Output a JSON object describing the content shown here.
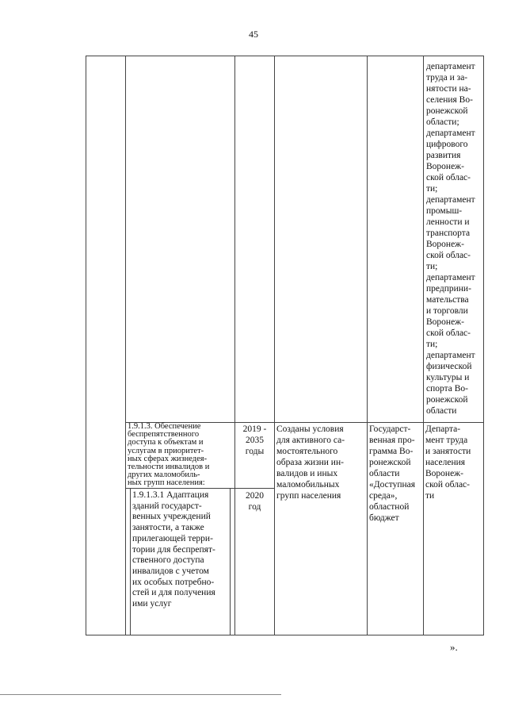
{
  "page_number": "45",
  "top_row": {
    "responsible": "департамент\nтруда и за-\nнятости на-\nселения Во-\nронежской\nобласти;\nдепартамент\nцифрового\nразвития\nВоронеж-\nской облас-\nти;\nдепартамент\nпромыш-\nленности и\nтранспорта\nВоронеж-\nской облас-\nти;\nдепартамент\nпредприни-\nмательства\nи торговли\nВоронеж-\nской облас-\nти;\nдепартамент\nфизической\nкультуры и\nспорта Во-\nронежской\nобласти"
  },
  "row_1913": {
    "measure": "1.9.1.3. Обеспечение\nбеспрепятственного\nдоступа к объектам и\nуслугам в приоритет-\nных сферах жизнедея-\nтельности инвалидов и\nдругих маломобиль-\nных групп населения:",
    "period": "2019 -\n2035\nгоды",
    "result": "Созданы условия\nдля активного са-\nмостоятельного\nобраза жизни ин-\nвалидов и иных\nмаломобильных\nгрупп населения",
    "source": "Государст-\nвенная про-\nграмма Во-\nронежской\nобласти\n«Доступная\nсреда»,\nобластной\nбюджет",
    "responsible": "Департа-\nмент труда\nи занятости\nнаселения\nВоронеж-\nской облас-\nти"
  },
  "row_19131": {
    "measure": "1.9.1.3.1 Адаптация\nзданий государст-\nвенных учреждений\nзанятости, а также\nприлегающей терри-\nтории для беспрепят-\nственного доступа\nинвалидов с учетом\nих особых потребно-\nстей и для получения\nими услуг",
    "period": "2020\nгод"
  },
  "closing_mark": "»."
}
